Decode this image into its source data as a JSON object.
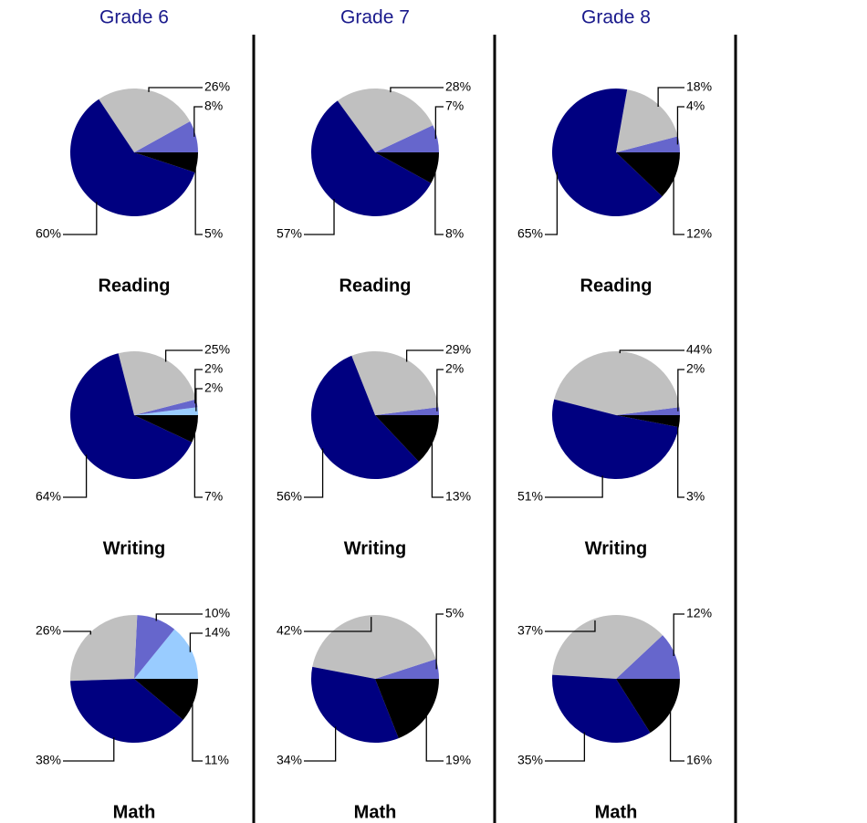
{
  "column_titles": [
    "Grade 6",
    "Grade 7",
    "Grade 8"
  ],
  "chart_data": [
    {
      "type": "pie",
      "title": "Reading",
      "values": [
        8,
        26,
        60,
        5
      ],
      "value_labels": [
        "8%",
        "26%",
        "60%",
        "5%"
      ],
      "colors": [
        "#6666cc",
        "#c0c0c0",
        "#000080",
        "#000000"
      ]
    },
    {
      "type": "pie",
      "title": "Writing",
      "values": [
        2,
        2,
        25,
        64,
        7
      ],
      "value_labels": [
        "2%",
        "2%",
        "25%",
        "64%",
        "7%"
      ],
      "colors": [
        "#99ccff",
        "#6666cc",
        "#c0c0c0",
        "#000080",
        "#000000"
      ]
    },
    {
      "type": "pie",
      "title": "Math",
      "values": [
        14,
        10,
        26,
        38,
        11
      ],
      "value_labels": [
        "14%",
        "10%",
        "26%",
        "38%",
        "11%"
      ],
      "colors": [
        "#99ccff",
        "#6666cc",
        "#c0c0c0",
        "#000080",
        "#000000"
      ]
    },
    {
      "type": "pie",
      "title": "Reading",
      "values": [
        7,
        28,
        57,
        8
      ],
      "value_labels": [
        "7%",
        "28%",
        "57%",
        "8%"
      ],
      "colors": [
        "#6666cc",
        "#c0c0c0",
        "#000080",
        "#000000"
      ]
    },
    {
      "type": "pie",
      "title": "Writing",
      "values": [
        2,
        29,
        56,
        13
      ],
      "value_labels": [
        "2%",
        "29%",
        "56%",
        "13%"
      ],
      "colors": [
        "#6666cc",
        "#c0c0c0",
        "#000080",
        "#000000"
      ]
    },
    {
      "type": "pie",
      "title": "Math",
      "values": [
        5,
        42,
        34,
        19
      ],
      "value_labels": [
        "5%",
        "42%",
        "34%",
        "19%"
      ],
      "colors": [
        "#6666cc",
        "#c0c0c0",
        "#000080",
        "#000000"
      ]
    },
    {
      "type": "pie",
      "title": "Reading",
      "values": [
        4,
        18,
        65,
        12
      ],
      "value_labels": [
        "4%",
        "18%",
        "65%",
        "12%"
      ],
      "colors": [
        "#6666cc",
        "#c0c0c0",
        "#000080",
        "#000000"
      ]
    },
    {
      "type": "pie",
      "title": "Writing",
      "values": [
        2,
        44,
        51,
        3
      ],
      "value_labels": [
        "2%",
        "44%",
        "51%",
        "3%"
      ],
      "colors": [
        "#6666cc",
        "#c0c0c0",
        "#000080",
        "#000000"
      ]
    },
    {
      "type": "pie",
      "title": "Math",
      "values": [
        12,
        37,
        35,
        16
      ],
      "value_labels": [
        "12%",
        "37%",
        "35%",
        "16%"
      ],
      "colors": [
        "#6666cc",
        "#c0c0c0",
        "#000080",
        "#000000"
      ]
    }
  ]
}
